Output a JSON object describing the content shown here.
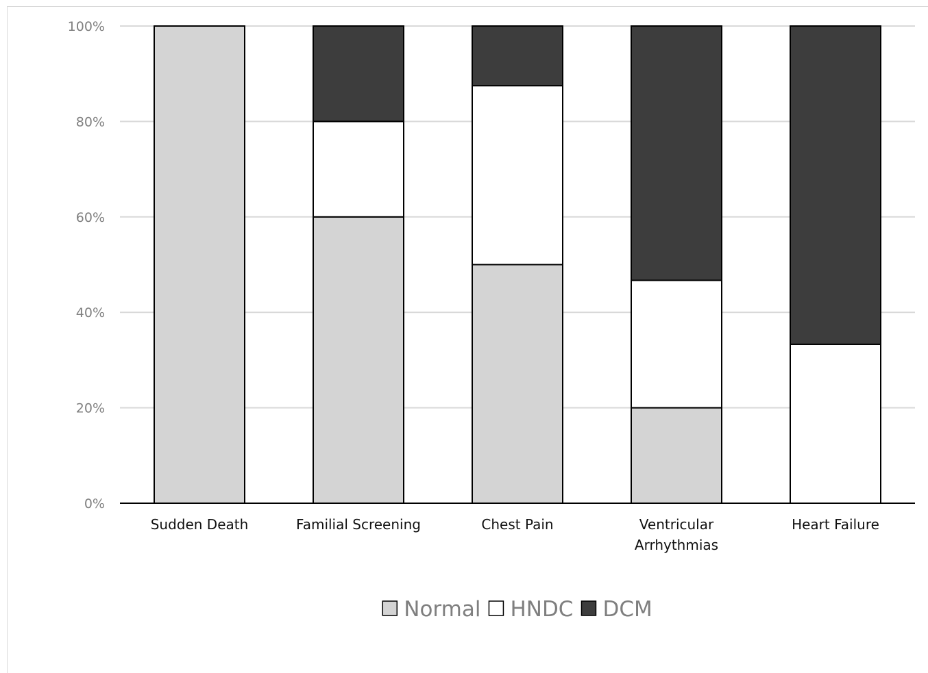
{
  "chart_data": {
    "type": "bar",
    "stacked": true,
    "title": "",
    "xlabel": "",
    "ylabel": "",
    "ylim": [
      0,
      100
    ],
    "yticks": [
      "0%",
      "20%",
      "40%",
      "60%",
      "80%",
      "100%"
    ],
    "yticks_values": [
      0,
      20,
      40,
      60,
      80,
      100
    ],
    "grid": true,
    "legend_position": "bottom",
    "categories": [
      [
        "Sudden Death"
      ],
      [
        "Familial Screening"
      ],
      [
        "Chest Pain"
      ],
      [
        "Ventricular",
        "Arrhythmias"
      ],
      [
        "Heart Failure"
      ]
    ],
    "series": [
      {
        "name": "Normal",
        "color": "#d4d4d4",
        "values": [
          100,
          60,
          50,
          20,
          0
        ]
      },
      {
        "name": "HNDC",
        "color": "#ffffff",
        "values": [
          0,
          20,
          37.5,
          26.7,
          33.3
        ]
      },
      {
        "name": "DCM",
        "color": "#3d3d3d",
        "values": [
          0,
          20,
          12.5,
          53.3,
          66.7
        ]
      }
    ]
  }
}
